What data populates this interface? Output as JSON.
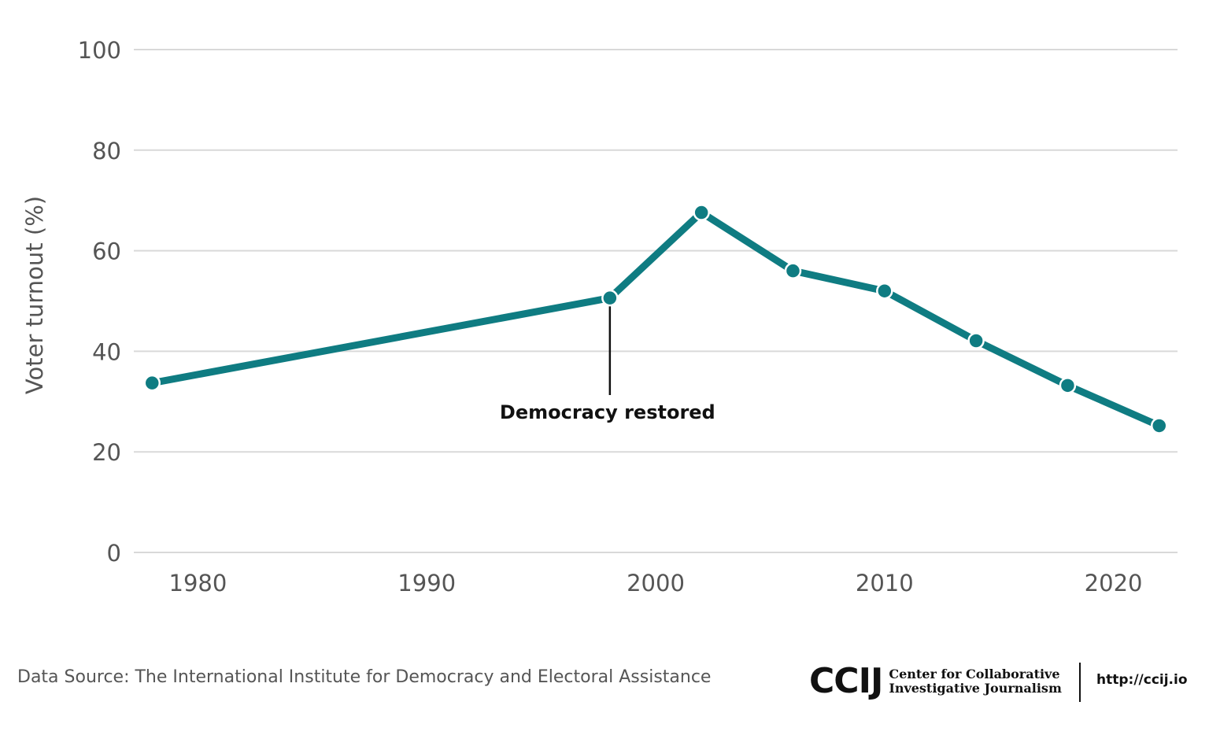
{
  "chart_data": {
    "type": "line",
    "title": "",
    "xlabel": "",
    "ylabel": "Voter turnout (%)",
    "xlim": [
      1977.2,
      2022.8
    ],
    "ylim": [
      0,
      100
    ],
    "xticks": [
      1980,
      1990,
      2000,
      2010,
      2020
    ],
    "yticks": [
      0,
      20,
      40,
      60,
      80,
      100
    ],
    "grid": true,
    "series": [
      {
        "color": "#0f7c82",
        "points": [
          {
            "x": 1978,
            "y": 33.7
          },
          {
            "x": 1998,
            "y": 50.6
          },
          {
            "x": 2002,
            "y": 67.6
          },
          {
            "x": 2006,
            "y": 56.0
          },
          {
            "x": 2010,
            "y": 52.0
          },
          {
            "x": 2014,
            "y": 42.1
          },
          {
            "x": 2018,
            "y": 33.2
          },
          {
            "x": 2022,
            "y": 25.2
          }
        ]
      }
    ],
    "annotations": [
      {
        "x": 1998,
        "y": 50.6,
        "text": "Democracy restored"
      }
    ]
  },
  "footer": {
    "source": "Data Source: The International Institute for Democracy and Electoral Assistance",
    "logo_mark": "CCIJ",
    "logo_line1": "Center for Collaborative",
    "logo_line2": "Investigative Journalism",
    "url": "http://ccij.io"
  },
  "colors": {
    "line": "#0f7c82",
    "grid": "#d9d9d9",
    "text": "#555555",
    "annotation": "#111111"
  }
}
